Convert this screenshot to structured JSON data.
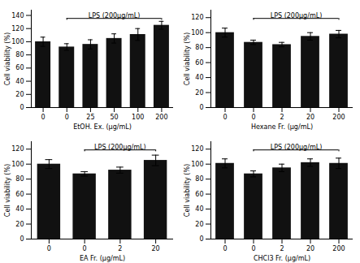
{
  "chart_data": [
    {
      "type": "bar",
      "xlabel": "EtOH. Ex. (μg/mL)",
      "ylabel": "Cell viability (%)",
      "categories": [
        "0",
        "0",
        "25",
        "50",
        "100",
        "200"
      ],
      "values": [
        100,
        92,
        96,
        105,
        111,
        125
      ],
      "errors": [
        7,
        5,
        7,
        7,
        9,
        6
      ],
      "color": "#111111",
      "ylim": [
        0,
        148
      ],
      "yticks": [
        0,
        20,
        40,
        60,
        80,
        100,
        120,
        140
      ],
      "annotation": {
        "text": "LPS (200μg/mL)",
        "start": 1
      }
    },
    {
      "type": "bar",
      "xlabel": "Hexane Fr. (μg/mL)",
      "ylabel": "Cell viability (%)",
      "categories": [
        "0",
        "0",
        "2",
        "20",
        "200"
      ],
      "values": [
        100,
        87,
        84,
        95,
        98
      ],
      "errors": [
        6,
        3,
        3,
        5,
        5
      ],
      "color": "#111111",
      "ylim": [
        0,
        130
      ],
      "yticks": [
        0,
        20,
        40,
        60,
        80,
        100,
        120
      ],
      "annotation": {
        "text": "LPS (200μg/mL)",
        "start": 1
      }
    },
    {
      "type": "bar",
      "xlabel": "EA Fr. (μg/mL)",
      "ylabel": "Cell viability (%)",
      "categories": [
        "0",
        "0",
        "2",
        "20"
      ],
      "values": [
        100,
        87,
        92,
        105
      ],
      "errors": [
        6,
        3,
        4,
        7
      ],
      "color": "#111111",
      "ylim": [
        0,
        130
      ],
      "yticks": [
        0,
        20,
        40,
        60,
        80,
        100,
        120
      ],
      "annotation": {
        "text": "LPS (200μg/mL)",
        "start": 1
      }
    },
    {
      "type": "bar",
      "xlabel": "CHCl3 Fr. (μg/mL)",
      "ylabel": "Cell viability (%)",
      "categories": [
        "0",
        "0",
        "2",
        "20",
        "200"
      ],
      "values": [
        101,
        87,
        95,
        102,
        101
      ],
      "errors": [
        6,
        4,
        5,
        5,
        7
      ],
      "color": "#111111",
      "ylim": [
        0,
        130
      ],
      "yticks": [
        0,
        20,
        40,
        60,
        80,
        100,
        120
      ],
      "annotation": {
        "text": "LPS (200μg/mL)",
        "start": 1
      }
    }
  ]
}
